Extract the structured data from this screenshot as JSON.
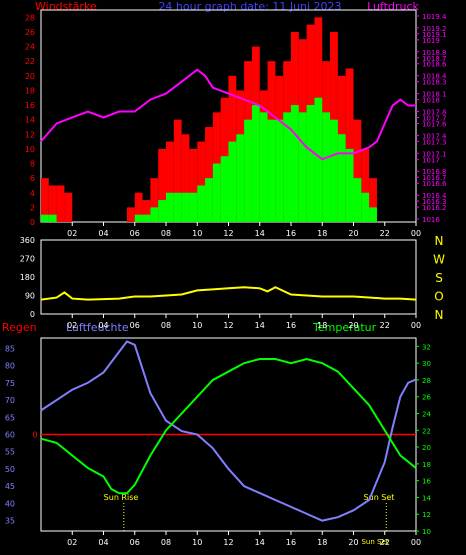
{
  "header": {
    "left_label": "Windstärke",
    "center_label": "24 hour graph date: 11 Juni 2023",
    "right_label": "Luftdruck"
  },
  "colors": {
    "wind_gust": "#ff0000",
    "wind_avg": "#00ff00",
    "pressure": "#ff00ff",
    "direction": "#ffff00",
    "rain": "#ff0000",
    "humidity": "#8080ff",
    "temperature": "#00ff00",
    "axis": "#ffffff",
    "header_left": "#ff0000",
    "header_center": "#4040ff",
    "header_right": "#ff00ff"
  },
  "x_ticks": [
    "02",
    "04",
    "06",
    "08",
    "10",
    "12",
    "14",
    "16",
    "18",
    "20",
    "22",
    "00"
  ],
  "chart_data": [
    {
      "type": "bar",
      "panel": "wind_pressure",
      "left_axis": {
        "ticks": [
          0,
          2,
          4,
          6,
          8,
          10,
          12,
          14,
          16,
          18,
          20,
          22,
          24,
          26,
          28
        ],
        "ylim": [
          0,
          29
        ]
      },
      "right_axis": {
        "ticks": [
          1016,
          1016.2,
          1016.3,
          1016.4,
          1016.6,
          1016.7,
          1016.8,
          1017,
          1017.1,
          1017.3,
          1017.4,
          1017.6,
          1017.7,
          1017.8,
          1018,
          1018.1,
          1018.3,
          1018.4,
          1018.6,
          1018.7,
          1018.8,
          1019,
          1019.1,
          1019.2,
          1019.4
        ],
        "ylim": [
          1015.95,
          1019.5
        ]
      },
      "series": [
        {
          "name": "Windstärke",
          "kind": "gust",
          "x": [
            0.5,
            1.0,
            1.5,
            2.0,
            2.5,
            3.0,
            3.5,
            4.0,
            4.5,
            5.0,
            5.5,
            6.0,
            6.5,
            7.0,
            7.5,
            8.0,
            8.5,
            9.0,
            9.5,
            10.0,
            10.5,
            11.0,
            11.5,
            12.0,
            12.5,
            13.0,
            13.5,
            14.0,
            14.5,
            15.0,
            15.5,
            16.0,
            16.5,
            17.0,
            17.5,
            18.0,
            18.5,
            19.0,
            19.5,
            20.0,
            20.5,
            21.0,
            21.5,
            22.0,
            22.5,
            23.0,
            23.5
          ],
          "values": [
            6,
            5,
            5,
            4,
            0,
            0,
            0,
            0,
            0,
            0,
            0,
            2,
            4,
            3,
            6,
            10,
            11,
            14,
            12,
            10,
            11,
            13,
            15,
            17,
            20,
            18,
            22,
            24,
            18,
            22,
            20,
            22,
            26,
            25,
            27,
            28,
            22,
            26,
            20,
            21,
            14,
            10,
            6,
            0,
            0,
            0,
            0
          ]
        },
        {
          "name": "Windstärke Mittel",
          "kind": "average",
          "x": [
            0.5,
            1.0,
            1.5,
            2.0,
            2.5,
            3.0,
            3.5,
            4.0,
            4.5,
            5.0,
            5.5,
            6.0,
            6.5,
            7.0,
            7.5,
            8.0,
            8.5,
            9.0,
            9.5,
            10.0,
            10.5,
            11.0,
            11.5,
            12.0,
            12.5,
            13.0,
            13.5,
            14.0,
            14.5,
            15.0,
            15.5,
            16.0,
            16.5,
            17.0,
            17.5,
            18.0,
            18.5,
            19.0,
            19.5,
            20.0,
            20.5,
            21.0,
            21.5,
            22.0,
            22.5,
            23.0,
            23.5
          ],
          "values": [
            1,
            1,
            0,
            0,
            0,
            0,
            0,
            0,
            0,
            0,
            0,
            0,
            1,
            1,
            2,
            3,
            4,
            4,
            4,
            4,
            5,
            6,
            8,
            9,
            11,
            12,
            14,
            16,
            15,
            14,
            14,
            15,
            16,
            15,
            16,
            17,
            15,
            14,
            12,
            10,
            6,
            4,
            2,
            0,
            0,
            0,
            0
          ]
        },
        {
          "name": "Luftdruck",
          "kind": "line",
          "axis": "right",
          "x": [
            0,
            1,
            2,
            3,
            4,
            5,
            6,
            7,
            8,
            9,
            10,
            10.5,
            11,
            12,
            13,
            14,
            15,
            16,
            17,
            17.5,
            18,
            19,
            20,
            21,
            21.5,
            22,
            22.5,
            23,
            23.5,
            24
          ],
          "values": [
            1017.3,
            1017.6,
            1017.7,
            1017.8,
            1017.7,
            1017.8,
            1017.8,
            1018.0,
            1018.1,
            1018.3,
            1018.5,
            1018.4,
            1018.2,
            1018.1,
            1018.0,
            1017.9,
            1017.7,
            1017.5,
            1017.2,
            1017.1,
            1017.0,
            1017.1,
            1017.1,
            1017.2,
            1017.3,
            1017.6,
            1017.9,
            1018.0,
            1017.9,
            1017.9
          ]
        }
      ]
    },
    {
      "type": "line",
      "panel": "wind_direction",
      "left_axis": {
        "ticks": [
          0,
          90,
          180,
          270,
          360
        ],
        "ylim": [
          0,
          360
        ]
      },
      "right_labels": [
        "N",
        "W",
        "S",
        "O",
        "N"
      ],
      "series": [
        {
          "name": "Windrichtung",
          "x": [
            0,
            1,
            1.5,
            2,
            3,
            5,
            6,
            7,
            9,
            10,
            11,
            12,
            13,
            14,
            14.5,
            15,
            16,
            17,
            18,
            20,
            22,
            23,
            24
          ],
          "values": [
            70,
            80,
            105,
            75,
            70,
            75,
            85,
            85,
            95,
            115,
            120,
            125,
            130,
            125,
            110,
            130,
            95,
            90,
            85,
            85,
            75,
            75,
            70
          ]
        }
      ]
    },
    {
      "type": "line",
      "panel": "humidity_temperature",
      "labels": {
        "rain": "Regen",
        "humidity": "Luftfeuchte",
        "temperature": "Temperatur"
      },
      "left_axis": {
        "ticks": [
          35,
          40,
          45,
          50,
          55,
          60,
          65,
          70,
          75,
          80,
          85
        ],
        "ylim": [
          32,
          88
        ]
      },
      "right_axis": {
        "ticks": [
          10,
          12,
          14,
          16,
          18,
          20,
          22,
          24,
          26,
          28,
          30,
          32
        ],
        "ylim": [
          10,
          33
        ]
      },
      "rain_axis": {
        "ticks": [
          0
        ]
      },
      "annotations": [
        "Sun Rise",
        "Sun Set",
        "Sun Set"
      ],
      "series": [
        {
          "name": "Luftfeuchte",
          "axis": "left",
          "x": [
            0,
            1,
            2,
            3,
            4,
            5,
            5.5,
            6,
            7,
            8,
            9,
            10,
            11,
            12,
            13,
            14,
            15,
            16,
            17,
            18,
            19,
            20,
            21,
            22,
            22.5,
            23,
            23.5,
            24
          ],
          "values": [
            67,
            70,
            73,
            75,
            78,
            84,
            87,
            86,
            72,
            64,
            61,
            60,
            56,
            50,
            45,
            43,
            41,
            39,
            37,
            35,
            36,
            38,
            41,
            52,
            62,
            71,
            75,
            76
          ]
        },
        {
          "name": "Temperatur",
          "axis": "right",
          "x": [
            0,
            1,
            2,
            3,
            4,
            4.5,
            5,
            5.5,
            6,
            7,
            8,
            9,
            10,
            11,
            12,
            13,
            14,
            15,
            16,
            17,
            18,
            19,
            20,
            21,
            22,
            23,
            24
          ],
          "values": [
            21,
            20.5,
            19,
            17.5,
            16.5,
            15,
            14.5,
            14.5,
            15.5,
            19,
            22,
            24,
            26,
            28,
            29,
            30,
            30.5,
            30.5,
            30,
            30.5,
            30,
            29,
            27,
            25,
            22,
            19,
            17.5
          ]
        }
      ]
    }
  ]
}
